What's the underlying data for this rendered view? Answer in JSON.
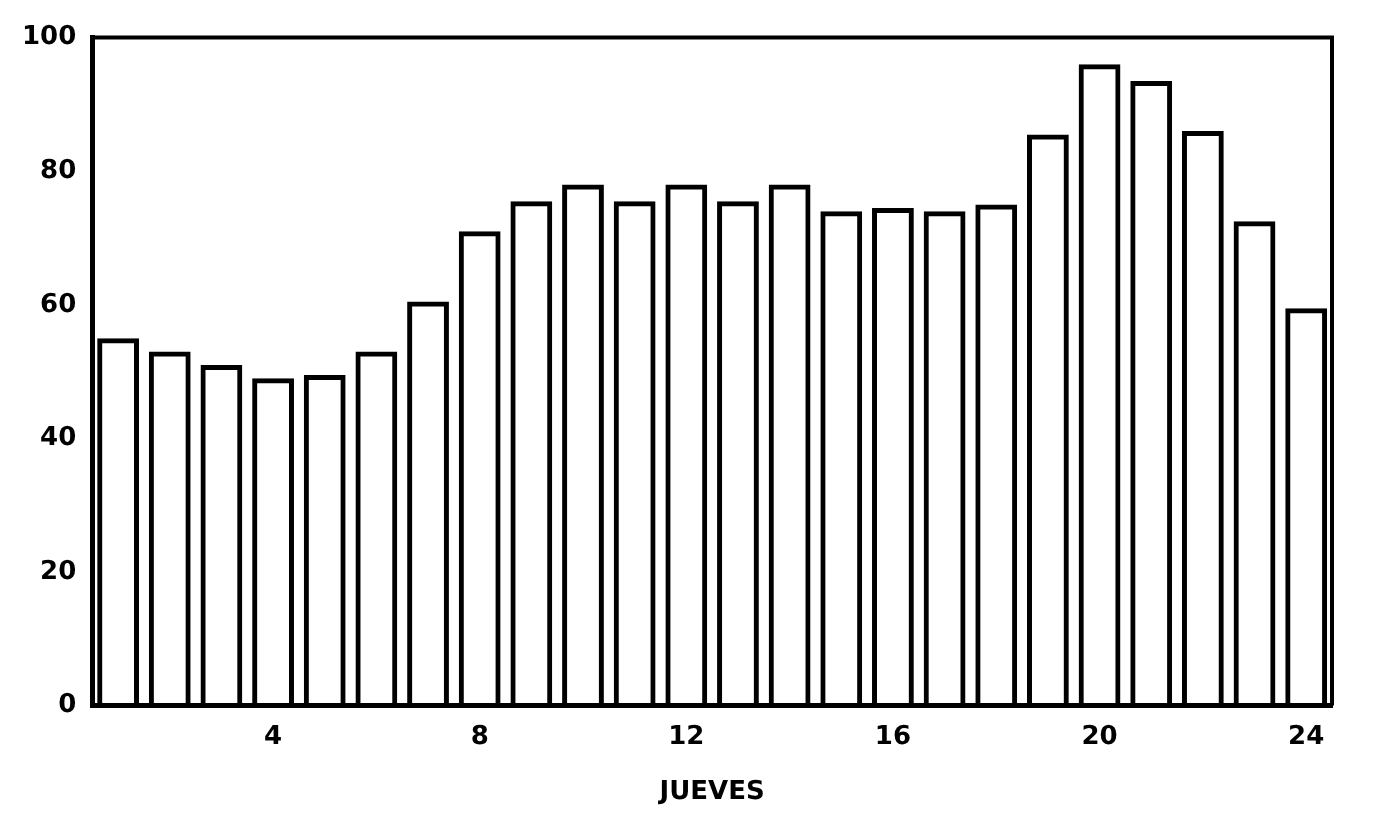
{
  "chart_data": {
    "type": "bar",
    "xlabel": "JUEVES",
    "categories": [
      null,
      null,
      null,
      "4",
      null,
      null,
      null,
      "8",
      null,
      null,
      null,
      "12",
      null,
      null,
      null,
      "16",
      null,
      null,
      null,
      "20",
      null,
      null,
      null,
      "24"
    ],
    "values": [
      55,
      53,
      51,
      49,
      49.5,
      53,
      60.5,
      71,
      75.5,
      78,
      75.5,
      78,
      75.5,
      78,
      74,
      74.5,
      74,
      75,
      85.5,
      96,
      93.5,
      86,
      72.5,
      59.5
    ],
    "color": "#000000",
    "ylim": [
      0,
      100
    ],
    "yticks": [
      0,
      20,
      40,
      60,
      80,
      100
    ],
    "grid": false,
    "legend": false
  }
}
